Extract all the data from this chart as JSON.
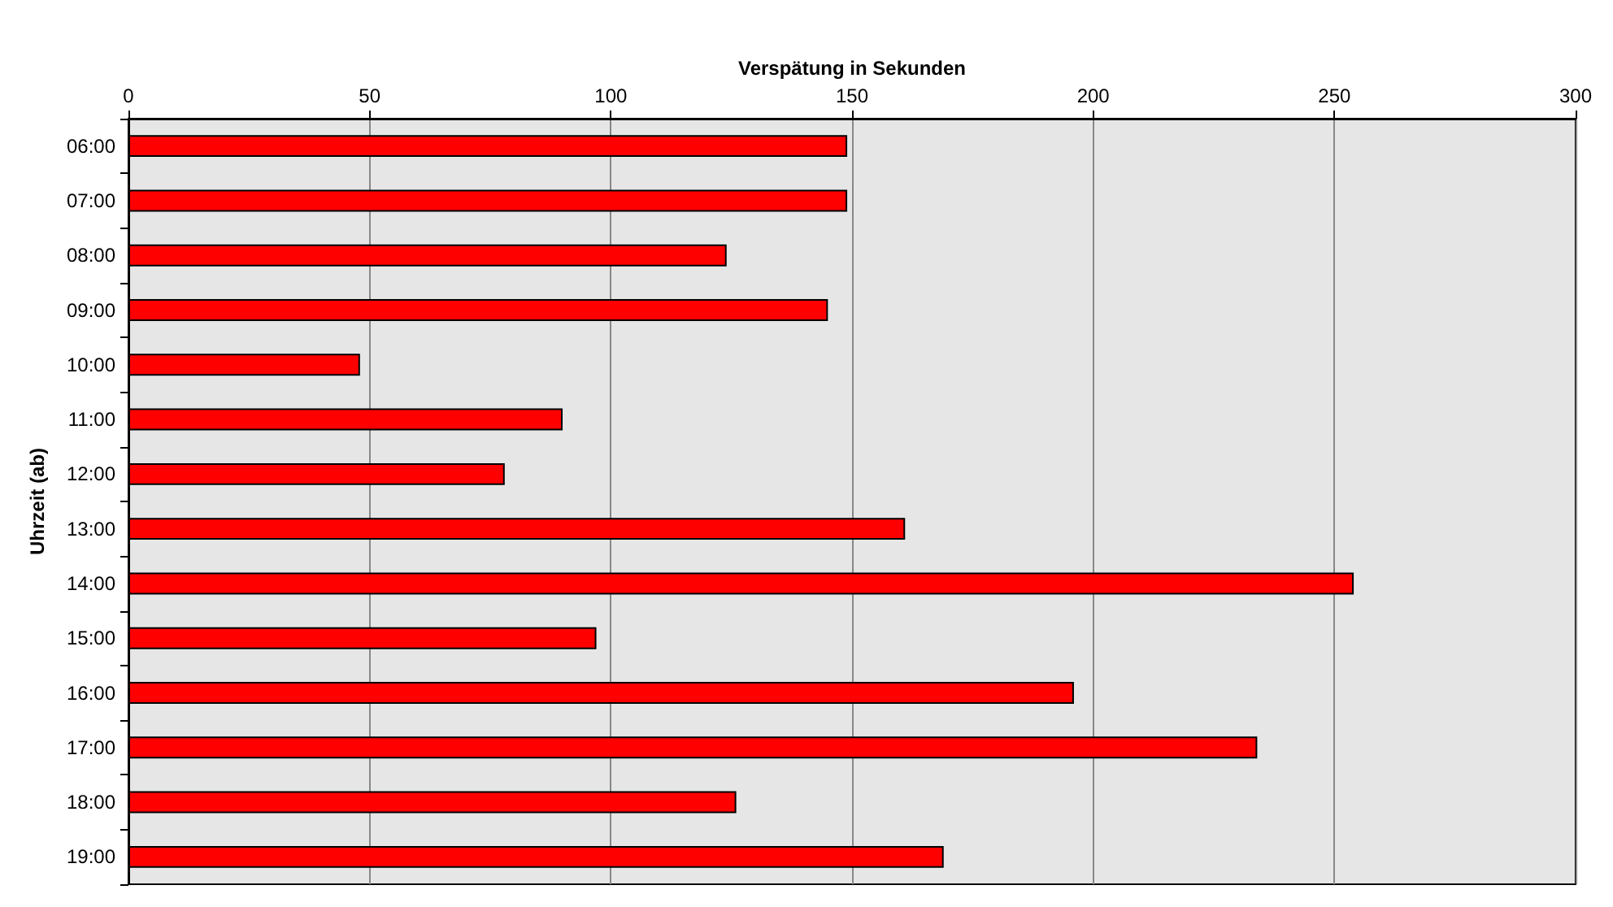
{
  "chart_data": {
    "type": "bar",
    "orientation": "horizontal",
    "xlabel": "Verspätung in Sekunden",
    "ylabel": "Uhrzeit (ab)",
    "categories": [
      "06:00",
      "07:00",
      "08:00",
      "09:00",
      "10:00",
      "11:00",
      "12:00",
      "13:00",
      "14:00",
      "15:00",
      "16:00",
      "17:00",
      "18:00",
      "19:00"
    ],
    "values": [
      149,
      149,
      124,
      145,
      48,
      90,
      78,
      161,
      254,
      97,
      196,
      234,
      126,
      169
    ],
    "color": "#ff0000",
    "xlim": [
      0,
      300
    ],
    "xticks": [
      0,
      50,
      100,
      150,
      200,
      250,
      300
    ],
    "grid": "x"
  }
}
